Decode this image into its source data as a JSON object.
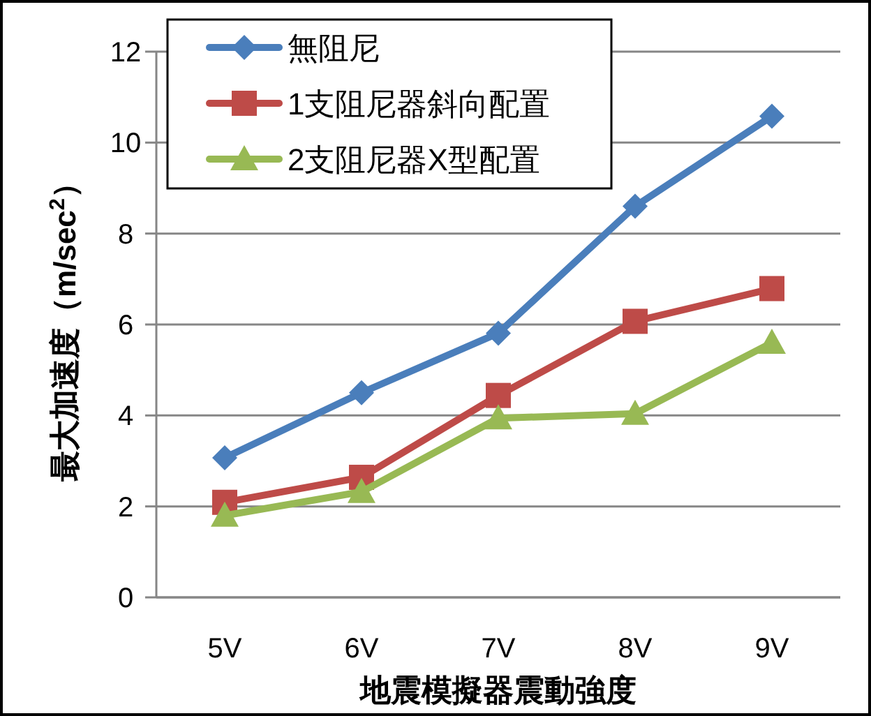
{
  "chart_data": {
    "type": "line",
    "xlabel": "地震模擬器震動強度",
    "ylabel": "最大加速度（m/sec$^{2}$）",
    "categories": [
      "5V",
      "6V",
      "7V",
      "8V",
      "9V"
    ],
    "series": [
      {
        "name": "無阻尼",
        "color": "#4a7ebb",
        "marker": "diamond",
        "values": [
          3.07,
          4.5,
          5.81,
          8.6,
          10.58
        ]
      },
      {
        "name": "1支阻尼器斜向配置",
        "color": "#be4b48",
        "marker": "square",
        "values": [
          2.09,
          2.64,
          4.44,
          6.07,
          6.79
        ]
      },
      {
        "name": "2支阻尼器X型配置",
        "color": "#98b954",
        "marker": "triangle",
        "values": [
          1.8,
          2.32,
          3.94,
          4.04,
          5.6
        ]
      }
    ],
    "ylim": [
      0,
      12
    ],
    "yticks": [
      0,
      2,
      4,
      6,
      8,
      10,
      12
    ],
    "grid": "y",
    "legend": "top left",
    "line_style": "solid"
  }
}
